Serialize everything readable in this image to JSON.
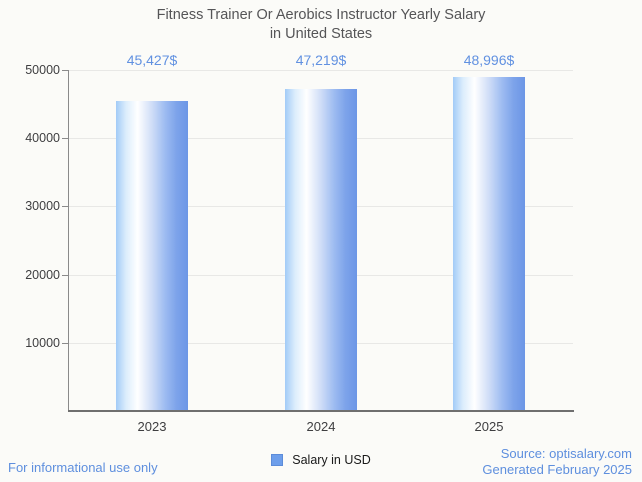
{
  "colors": {
    "background": "#fbfbf8",
    "title": "#555557",
    "axis_label": "#3e3e40",
    "grid": "#e8e8e6",
    "axis_line": "#8a8a8a",
    "axis_bottom": "#6f6f6f",
    "annotation": "#6191e1",
    "footer_link": "#5e8fde",
    "legend_swatch": "#6d9eeb",
    "legend_swatch_border": "#5c8cd9"
  },
  "chart_data": {
    "type": "bar",
    "title": "Fitness Trainer Or Aerobics Instructor Yearly Salary in United States",
    "title_lines": [
      "Fitness Trainer Or Aerobics Instructor Yearly Salary",
      "in United States"
    ],
    "categories": [
      "2023",
      "2024",
      "2025"
    ],
    "series": [
      {
        "name": "Salary in USD",
        "values": [
          45427,
          47219,
          48996
        ]
      }
    ],
    "value_labels": [
      "45,427$",
      "47,219$",
      "48,996$"
    ],
    "y_ticks": [
      10000,
      20000,
      30000,
      40000,
      50000
    ],
    "ylim": [
      0,
      50000
    ],
    "grid": true,
    "legend_position": "bottom",
    "bar_gradient_stops": [
      [
        "#a2cbf7",
        "0%"
      ],
      [
        "#dcedfc",
        "14%"
      ],
      [
        "#ffffff",
        "30%"
      ],
      [
        "#cfddf7",
        "50%"
      ],
      [
        "#9ebcf1",
        "68%"
      ],
      [
        "#7da3ea",
        "84%"
      ],
      [
        "#6c96e6",
        "100%"
      ]
    ]
  },
  "legend": {
    "label": "Salary in USD"
  },
  "footer": {
    "disclaimer": "For informational use only",
    "source_line1": "Source: optisalary.com",
    "source_line2": "Generated February 2025"
  }
}
